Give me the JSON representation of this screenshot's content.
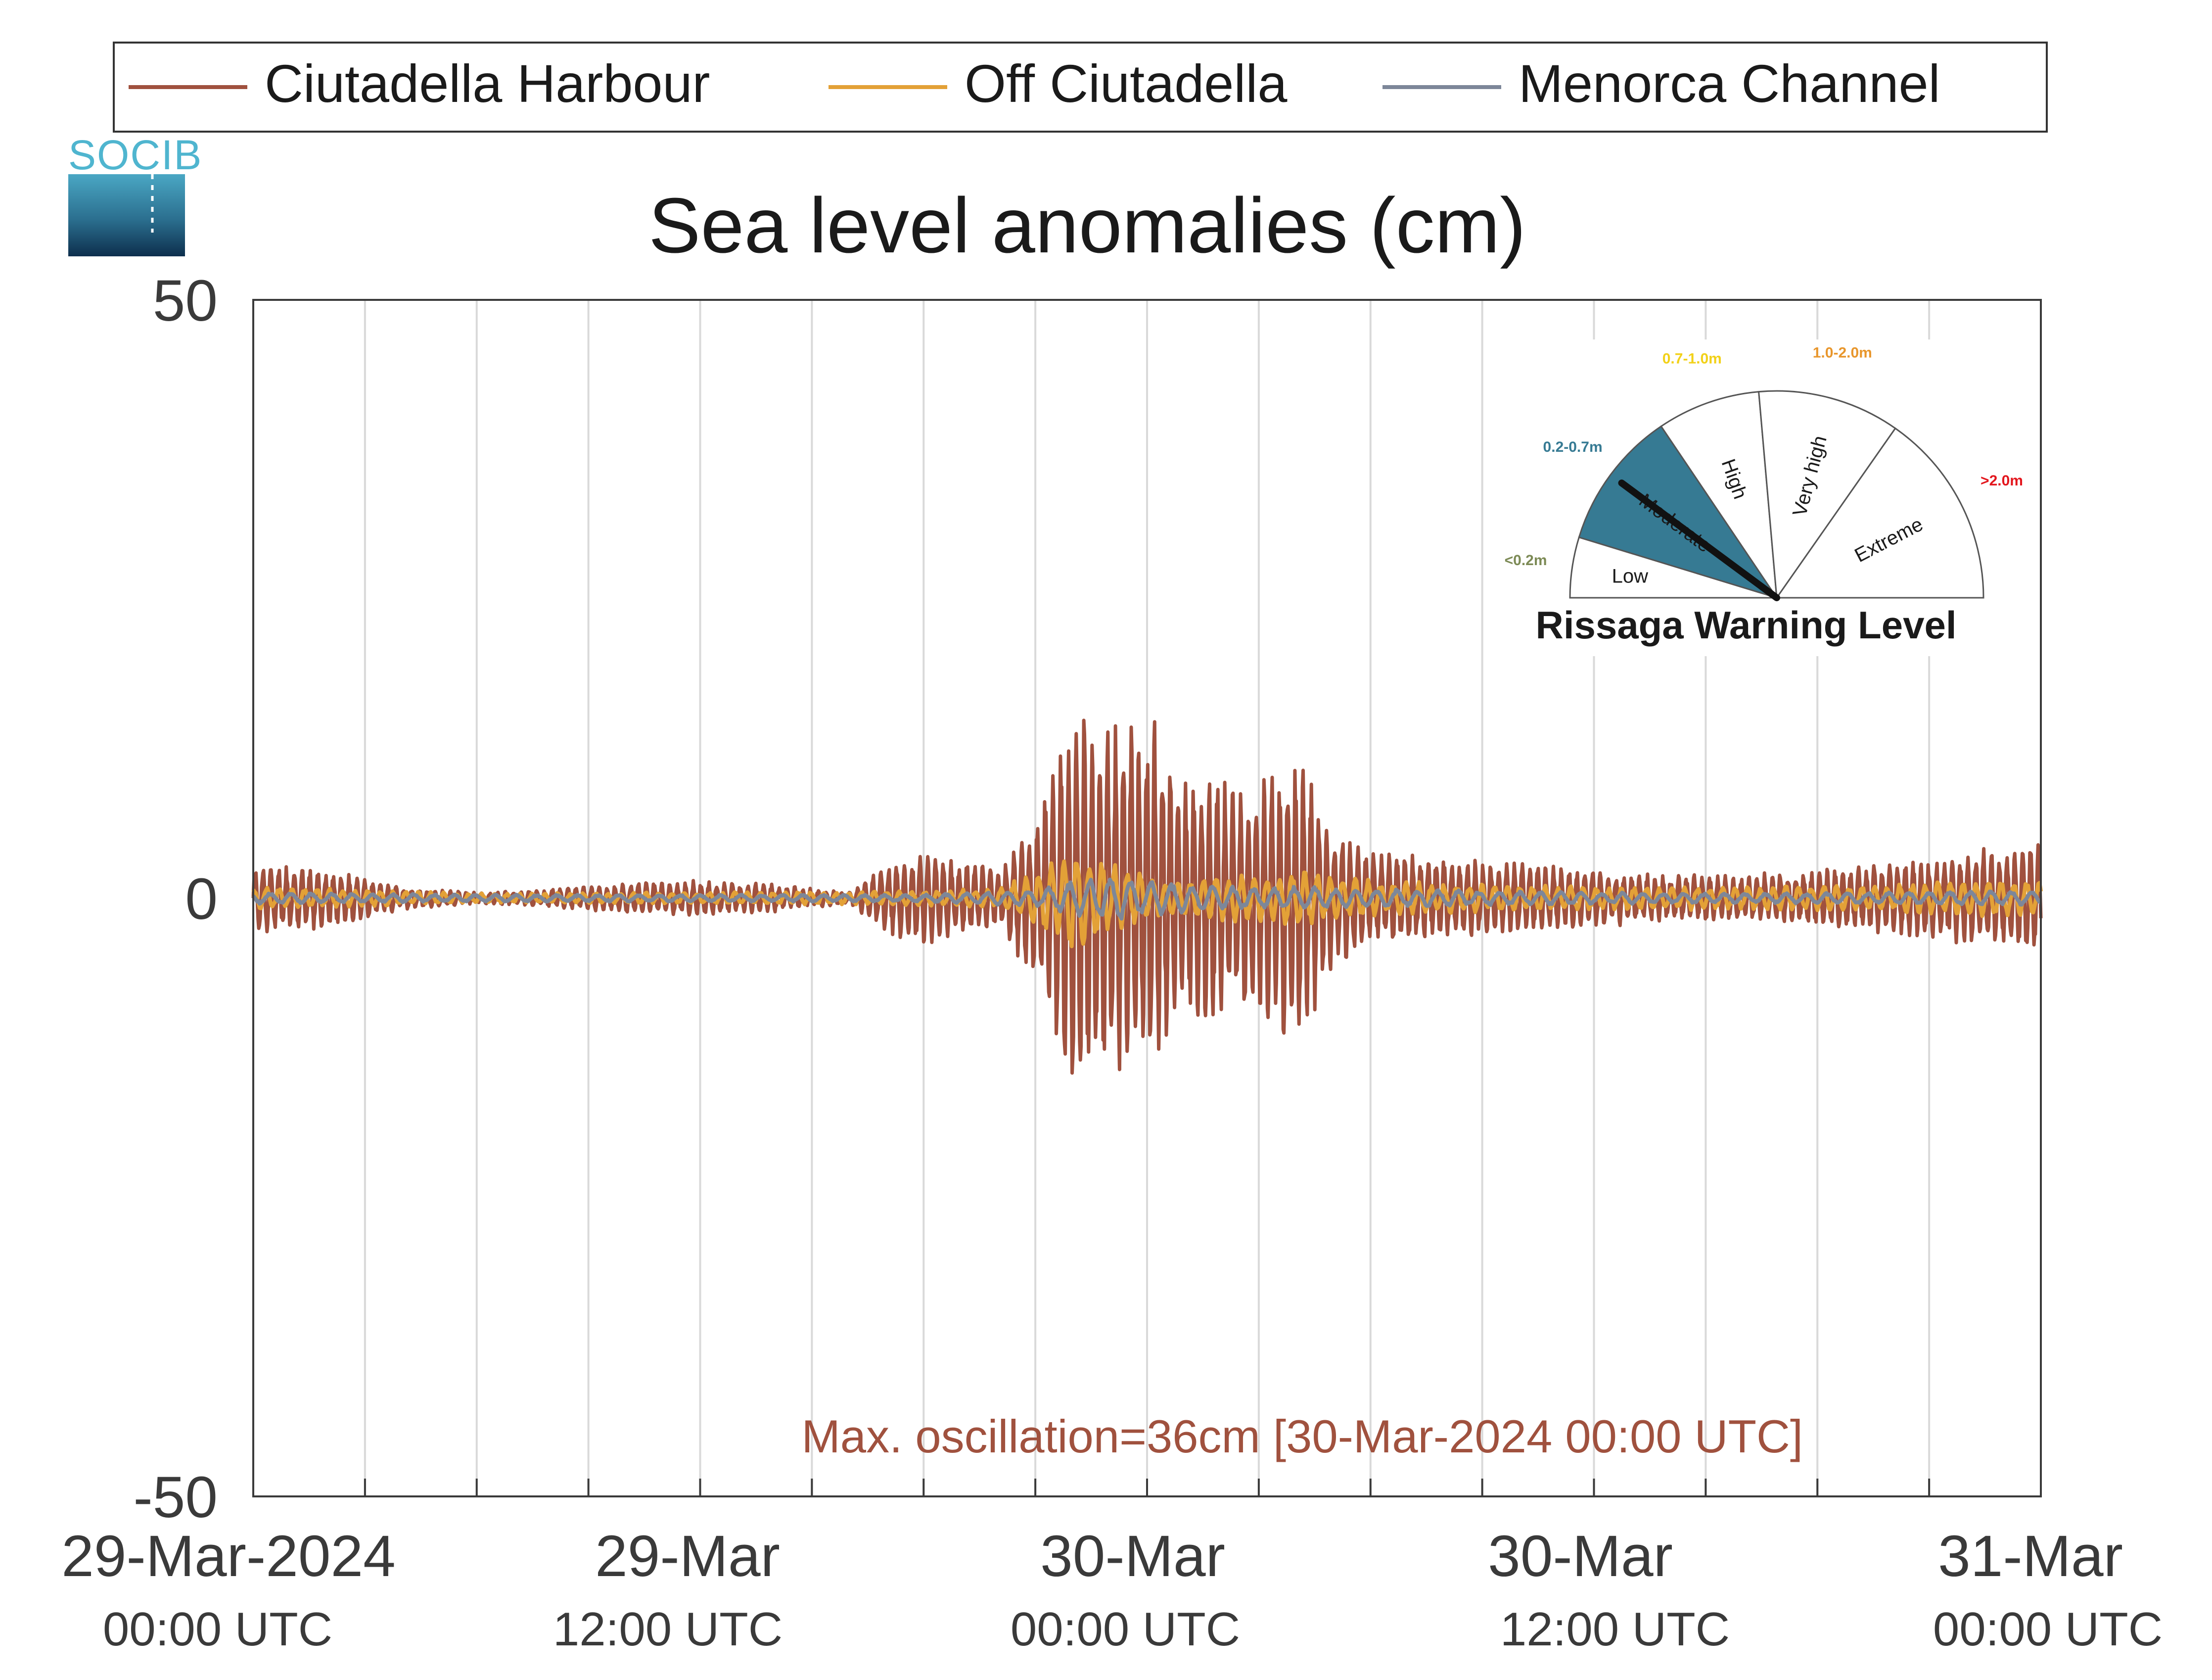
{
  "legend": {
    "items": [
      {
        "label": "Ciutadella Harbour",
        "color": "#a0513e"
      },
      {
        "label": "Off Ciutadella",
        "color": "#e3a137"
      },
      {
        "label": "Menorca Channel",
        "color": "#7d8799"
      }
    ]
  },
  "logo": {
    "text": "SOCIB"
  },
  "chart_data": {
    "type": "line",
    "title": "Sea level anomalies (cm)",
    "xlabel": "",
    "ylabel": "",
    "ylim": [
      -50,
      50
    ],
    "yticks": [
      "50",
      "0",
      "-50"
    ],
    "xlim": [
      "29-Mar-2024 00:00 UTC",
      "31-Mar-2024 00:00 UTC"
    ],
    "xticks": [
      {
        "line1": "29-Mar-2024",
        "line2": "00:00 UTC"
      },
      {
        "line1": "29-Mar",
        "line2": "12:00 UTC"
      },
      {
        "line1": "30-Mar",
        "line2": "00:00 UTC"
      },
      {
        "line1": "30-Mar",
        "line2": "12:00 UTC"
      },
      {
        "line1": "31-Mar",
        "line2": "00:00 UTC"
      }
    ],
    "grid": true,
    "legend_position": "top",
    "annotation": "Max. oscillation=36cm [30-Mar-2024 00:00 UTC]",
    "annotation_color": "#a0513e",
    "series": [
      {
        "name": "Ciutadella Harbour",
        "color": "#a0513e",
        "x_hours": [
          0,
          2,
          4,
          6,
          8,
          10,
          12,
          14,
          16,
          17,
          18,
          20,
          21,
          22,
          23,
          24,
          25,
          26,
          27,
          28,
          29,
          30,
          32,
          34,
          36,
          38,
          40,
          42,
          44,
          46,
          48
        ],
        "envelope_cm": [
          3,
          2.5,
          1,
          0.5,
          0.8,
          1.3,
          1.5,
          1.2,
          0.5,
          3,
          4,
          2.5,
          7,
          17,
          15,
          16,
          10,
          11,
          10,
          13,
          6,
          4,
          3.5,
          3,
          2.5,
          2,
          2,
          2.5,
          3,
          4,
          5
        ]
      },
      {
        "name": "Off Ciutadella",
        "color": "#e3a137",
        "x_hours": [
          0,
          6,
          12,
          17,
          20,
          21,
          22,
          23,
          24,
          25,
          26,
          27,
          28,
          29,
          30,
          32,
          36,
          40,
          44,
          46,
          48
        ],
        "envelope_cm": [
          1,
          0.4,
          0.5,
          0.6,
          0.8,
          2.5,
          5,
          3,
          2,
          1.5,
          2,
          2,
          2.5,
          2,
          1.5,
          1.3,
          1,
          1,
          1.2,
          1.5,
          1.5
        ]
      },
      {
        "name": "Menorca Channel",
        "color": "#7d8799",
        "x_hours": [
          0,
          6,
          12,
          18,
          21,
          22,
          23,
          24,
          25,
          26,
          28,
          30,
          36,
          40,
          44,
          46,
          48
        ],
        "envelope_cm": [
          0.5,
          0.3,
          0.3,
          0.3,
          0.7,
          1.5,
          2,
          1.5,
          1.2,
          1,
          1,
          0.8,
          0.5,
          0.4,
          0.5,
          0.6,
          0.6
        ]
      }
    ]
  },
  "gauge": {
    "title": "Rissaga Warning Level",
    "level_value": 0.45,
    "active_color": "#367a93",
    "sectors": [
      {
        "label": "Low",
        "range": "<0.2m",
        "range_color": "#7c8a55"
      },
      {
        "label": "Moderate",
        "range": "0.2-0.7m",
        "range_color": "#367a93"
      },
      {
        "label": "High",
        "range": "0.7-1.0m",
        "range_color": "#f2d118"
      },
      {
        "label": "Very high",
        "range": "1.0-2.0m",
        "range_color": "#e8962c"
      },
      {
        "label": "Extreme",
        "range": ">2.0m",
        "range_color": "#e3161d"
      }
    ]
  }
}
